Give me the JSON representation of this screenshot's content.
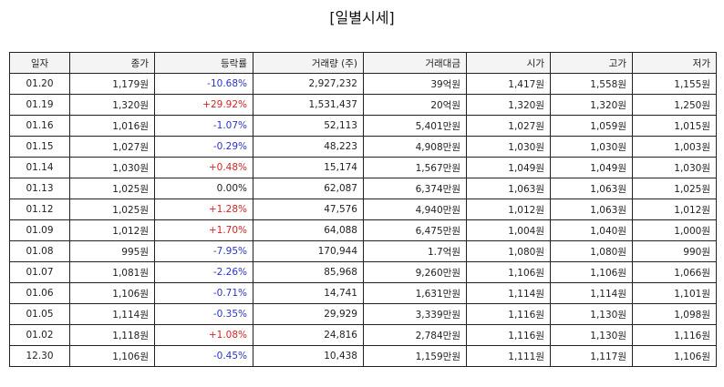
{
  "title": "[일별시세]",
  "columns": [
    "일자",
    "종가",
    "등락률",
    "거래량 (주)",
    "거래대금",
    "시가",
    "고가",
    "저가"
  ],
  "rows": [
    {
      "date": "01.20",
      "close": "1,179원",
      "change": "-10.68%",
      "dir": "down",
      "volume": "2,927,232",
      "amount": "39억원",
      "open": "1,417원",
      "high": "1,558원",
      "low": "1,155원"
    },
    {
      "date": "01.19",
      "close": "1,320원",
      "change": "+29.92%",
      "dir": "up",
      "volume": "1,531,437",
      "amount": "20억원",
      "open": "1,320원",
      "high": "1,320원",
      "low": "1,250원"
    },
    {
      "date": "01.16",
      "close": "1,016원",
      "change": "-1.07%",
      "dir": "down",
      "volume": "52,113",
      "amount": "5,401만원",
      "open": "1,027원",
      "high": "1,059원",
      "low": "1,015원"
    },
    {
      "date": "01.15",
      "close": "1,027원",
      "change": "-0.29%",
      "dir": "down",
      "volume": "48,223",
      "amount": "4,908만원",
      "open": "1,030원",
      "high": "1,030원",
      "low": "1,003원"
    },
    {
      "date": "01.14",
      "close": "1,030원",
      "change": "+0.48%",
      "dir": "up",
      "volume": "15,174",
      "amount": "1,567만원",
      "open": "1,049원",
      "high": "1,049원",
      "low": "1,030원"
    },
    {
      "date": "01.13",
      "close": "1,025원",
      "change": "0.00%",
      "dir": "flat",
      "volume": "62,087",
      "amount": "6,374만원",
      "open": "1,063원",
      "high": "1,063원",
      "low": "1,025원"
    },
    {
      "date": "01.12",
      "close": "1,025원",
      "change": "+1.28%",
      "dir": "up",
      "volume": "47,576",
      "amount": "4,940만원",
      "open": "1,012원",
      "high": "1,063원",
      "low": "1,012원"
    },
    {
      "date": "01.09",
      "close": "1,012원",
      "change": "+1.70%",
      "dir": "up",
      "volume": "64,088",
      "amount": "6,475만원",
      "open": "1,004원",
      "high": "1,040원",
      "low": "1,000원"
    },
    {
      "date": "01.08",
      "close": "995원",
      "change": "-7.95%",
      "dir": "down",
      "volume": "170,944",
      "amount": "1.7억원",
      "open": "1,080원",
      "high": "1,080원",
      "low": "990원"
    },
    {
      "date": "01.07",
      "close": "1,081원",
      "change": "-2.26%",
      "dir": "down",
      "volume": "85,968",
      "amount": "9,260만원",
      "open": "1,106원",
      "high": "1,106원",
      "low": "1,066원"
    },
    {
      "date": "01.06",
      "close": "1,106원",
      "change": "-0.71%",
      "dir": "down",
      "volume": "14,741",
      "amount": "1,631만원",
      "open": "1,114원",
      "high": "1,114원",
      "low": "1,101원"
    },
    {
      "date": "01.05",
      "close": "1,114원",
      "change": "-0.35%",
      "dir": "down",
      "volume": "29,929",
      "amount": "3,339만원",
      "open": "1,116원",
      "high": "1,130원",
      "low": "1,098원"
    },
    {
      "date": "01.02",
      "close": "1,118원",
      "change": "+1.08%",
      "dir": "up",
      "volume": "24,816",
      "amount": "2,784만원",
      "open": "1,116원",
      "high": "1,130원",
      "low": "1,116원"
    },
    {
      "date": "12.30",
      "close": "1,106원",
      "change": "-0.45%",
      "dir": "down",
      "volume": "10,438",
      "amount": "1,159만원",
      "open": "1,111원",
      "high": "1,117원",
      "low": "1,106원"
    }
  ],
  "colors": {
    "up": "#d42424",
    "down": "#2a35c8",
    "header_bg": "#f4f4f4",
    "border": "#222222"
  }
}
